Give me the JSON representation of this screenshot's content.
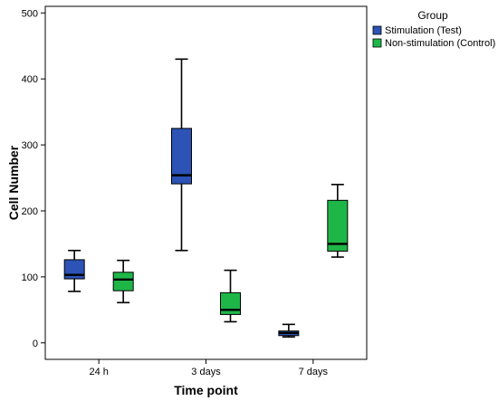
{
  "chart_data": {
    "type": "boxplot",
    "title": "",
    "xlabel": "Time point",
    "ylabel": "Cell Number",
    "ylim": [
      -25,
      510
    ],
    "yticks": [
      0,
      100,
      200,
      300,
      400,
      500
    ],
    "grid": false,
    "legend": {
      "title": "Group",
      "placement": "top-right"
    },
    "categories": [
      "24 h",
      "3 days",
      "7 days"
    ],
    "series": [
      {
        "name": "Stimulation (Test)",
        "color": "#2C53B5",
        "boxes": [
          {
            "min": 78,
            "q1": 97,
            "median": 103,
            "q3": 126,
            "max": 140
          },
          {
            "min": 140,
            "q1": 241,
            "median": 254,
            "q3": 325,
            "max": 430
          },
          {
            "min": 9,
            "q1": 11,
            "median": 15,
            "q3": 18,
            "max": 28
          }
        ]
      },
      {
        "name": "Non-stimulation (Control)",
        "color": "#1FB648",
        "boxes": [
          {
            "min": 61,
            "q1": 79,
            "median": 96,
            "q3": 107,
            "max": 125
          },
          {
            "min": 32,
            "q1": 43,
            "median": 50,
            "q3": 76,
            "max": 110
          },
          {
            "min": 130,
            "q1": 139,
            "median": 150,
            "q3": 216,
            "max": 240
          }
        ]
      }
    ]
  }
}
